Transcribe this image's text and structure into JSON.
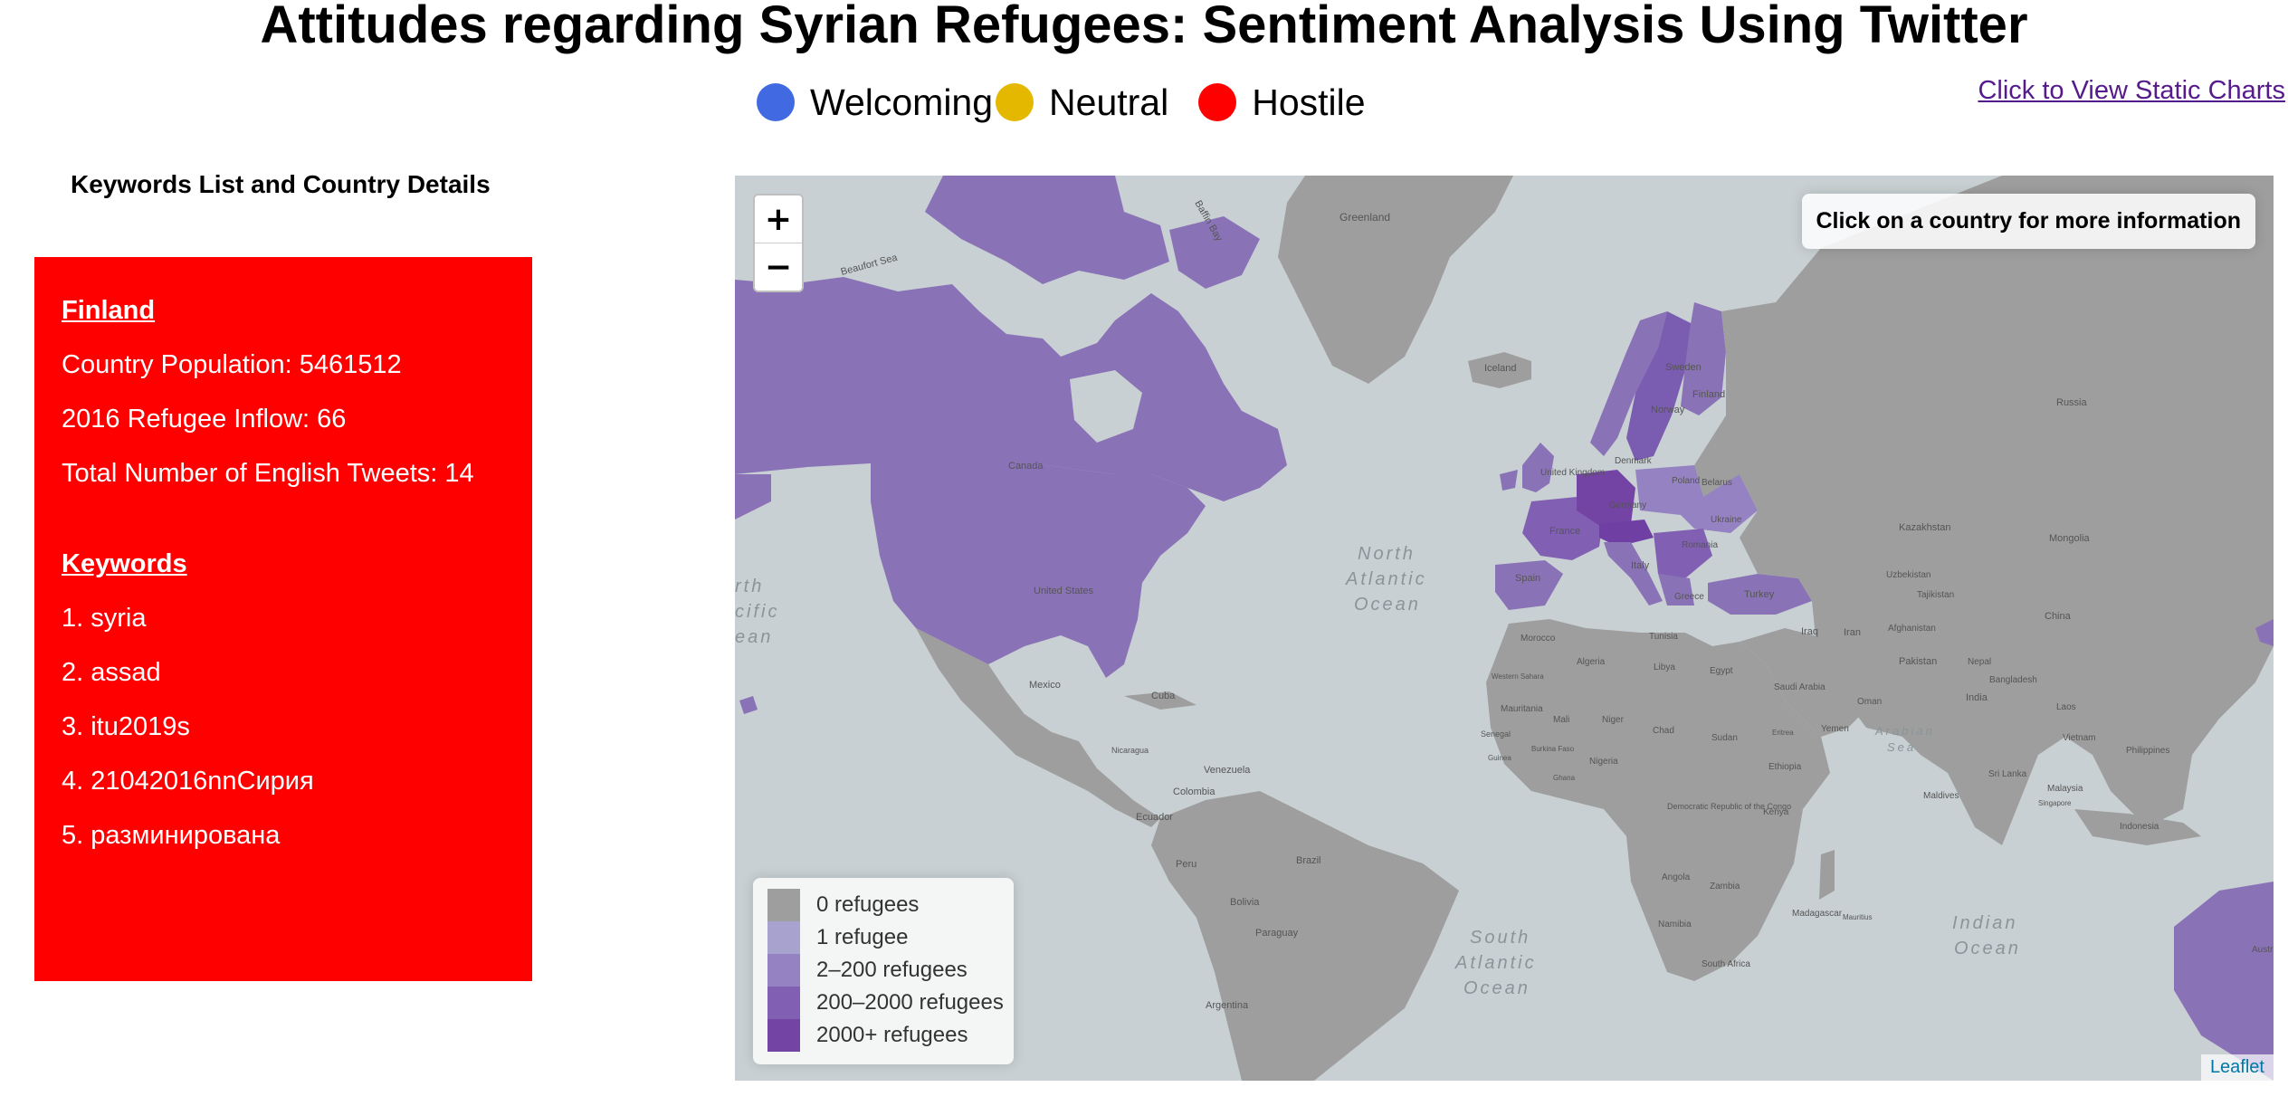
{
  "title": "Attitudes regarding Syrian Refugees: Sentiment Analysis Using Twitter",
  "sentiment_legend": [
    {
      "label": "Welcoming",
      "color": "#4169e1"
    },
    {
      "label": "Neutral",
      "color": "#e5b800"
    },
    {
      "label": "Hostile",
      "color": "#ff0000"
    }
  ],
  "static_link": "Click to View Static Charts",
  "sidebar": {
    "heading": "Keywords List and Country Details",
    "panel_color": "#ff0000",
    "country": "Finland",
    "population": "Country Population: 5461512",
    "inflow": "2016 Refugee Inflow: 66",
    "tweets": "Total Number of English Tweets: 14",
    "keywords_heading": "Keywords",
    "keywords": [
      "1. syria",
      "2. assad",
      "3. itu2019s",
      "4. 21042016nnСирия",
      "5. разминирована"
    ]
  },
  "map": {
    "zoom_in": "+",
    "zoom_out": "−",
    "info_text": "Click on a country for more information",
    "attribution": "Leaflet",
    "legend": [
      {
        "label": "0 refugees",
        "color": "#9e9e9e"
      },
      {
        "label": "1 refugee",
        "color": "#a8a2cf"
      },
      {
        "label": "2–200 refugees",
        "color": "#9582c2"
      },
      {
        "label": "200–2000 refugees",
        "color": "#8160b4"
      },
      {
        "label": "2000+ refugees",
        "color": "#7344a4"
      }
    ],
    "labels": {
      "greenland": "Greenland",
      "beaufort": "Beaufort Sea",
      "baffin": "Baffin Bay",
      "iceland": "Iceland",
      "canada": "Canada",
      "us": "United States",
      "mexico": "Mexico",
      "cuba": "Cuba",
      "venezuela": "Venezuela",
      "colombia": "Colombia",
      "ecuador": "Ecuador",
      "peru": "Peru",
      "brazil": "Brazil",
      "bolivia": "Bolivia",
      "paraguay": "Paraguay",
      "argentina": "Argentina",
      "nicaragua": "Nicaragua",
      "norway": "Norway",
      "sweden": "Sweden",
      "finland": "Finland",
      "russia": "Russia",
      "uk": "United Kingdom",
      "denmark": "Denmark",
      "germany": "Germany",
      "france": "France",
      "spain": "Spain",
      "italy": "Italy",
      "poland": "Poland",
      "belarus": "Belarus",
      "ukraine": "Ukraine",
      "romania": "Romania",
      "greece": "Greece",
      "turkey": "Turkey",
      "kazakhstan": "Kazakhstan",
      "mongolia": "Mongolia",
      "china": "China",
      "uzbekistan": "Uzbekistan",
      "tajikistan": "Tajikistan",
      "afghanistan": "Afghanistan",
      "iran": "Iran",
      "iraq": "Iraq",
      "pakistan": "Pakistan",
      "nepal": "Nepal",
      "india": "India",
      "bangladesh": "Bangladesh",
      "laos": "Laos",
      "vietnam": "Vietnam",
      "philippines": "Philippines",
      "malaysia": "Malaysia",
      "singapore": "Singapore",
      "indonesia": "Indonesia",
      "srilanka": "Sri Lanka",
      "maldives": "Maldives",
      "saudi": "Saudi Arabia",
      "yemen": "Yemen",
      "oman": "Oman",
      "morocco": "Morocco",
      "algeria": "Algeria",
      "tunisia": "Tunisia",
      "libya": "Libya",
      "egypt": "Egypt",
      "wsahara": "Western Sahara",
      "mauritania": "Mauritania",
      "mali": "Mali",
      "niger": "Niger",
      "chad": "Chad",
      "sudan": "Sudan",
      "senegal": "Senegal",
      "guinea": "Guinea",
      "burkina": "Burkina Faso",
      "nigeria": "Nigeria",
      "ghana": "Ghana",
      "eritrea": "Eritrea",
      "ethiopia": "Ethiopia",
      "drc": "Democratic Republic of the Congo",
      "kenya": "Kenya",
      "angola": "Angola",
      "zambia": "Zambia",
      "namibia": "Namibia",
      "southafrica": "South Africa",
      "madagascar": "Madagascar",
      "mauritius": "Mauritius",
      "australia": "Australia"
    },
    "oceans": {
      "natl1": "North",
      "natl2": "Atlantic",
      "natl3": "Ocean",
      "satl1": "South",
      "satl2": "Atlantic",
      "satl3": "Ocean",
      "ind1": "Indian",
      "ind2": "Ocean",
      "pac1": "rth",
      "pac2": "cific",
      "pac3": "ean",
      "arabian1": "Arabian",
      "arabian2": "Sea"
    }
  }
}
